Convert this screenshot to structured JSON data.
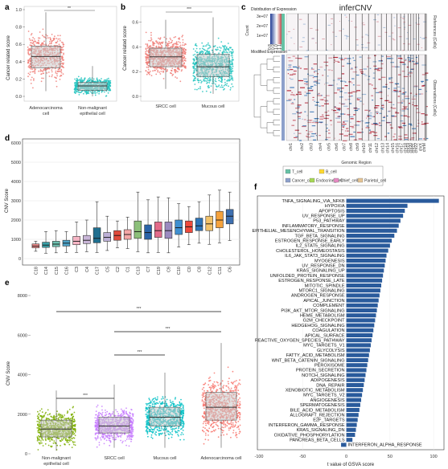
{
  "panels": {
    "a": {
      "letter": "a",
      "ylabel": "Cancer related score",
      "yticks": [
        "0.0",
        "0.2",
        "0.4",
        "0.6",
        "0.8",
        "1.0"
      ],
      "significance": "**",
      "groups": [
        {
          "label_lines": [
            "Adenocarcinoma",
            "cell"
          ],
          "color": "#f07e78",
          "box": {
            "min": 0.06,
            "q1": 0.33,
            "median": 0.46,
            "q3": 0.58,
            "max": 0.97
          }
        },
        {
          "label_lines": [
            "Non-malignant",
            "epithelial cell"
          ],
          "color": "#25c4c0",
          "box": {
            "min": 0.0,
            "q1": 0.07,
            "median": 0.12,
            "q3": 0.16,
            "max": 0.35
          }
        }
      ]
    },
    "b": {
      "letter": "b",
      "ylabel": "Cancer related score",
      "yticks": [
        "0.0",
        "0.2",
        "0.4",
        "0.6"
      ],
      "significance": "***",
      "groups": [
        {
          "label_lines": [
            "SRCC cell"
          ],
          "color": "#f07e78",
          "box": {
            "min": 0.06,
            "q1": 0.24,
            "median": 0.32,
            "q3": 0.39,
            "max": 0.62
          }
        },
        {
          "label_lines": [
            "Mucous cell"
          ],
          "color": "#25c4c0",
          "box": {
            "min": 0.02,
            "q1": 0.16,
            "median": 0.24,
            "q3": 0.34,
            "max": 0.64
          }
        }
      ]
    },
    "c": {
      "letter": "c",
      "title": "inferCNV",
      "legend_title": "Distribution of Expression",
      "count_label": "Count",
      "count_ticks": [
        "3e+07",
        "2e+07",
        "1e+07"
      ],
      "scale_ticks": [
        "0.8",
        "0.9",
        "1.0",
        "1.1",
        "1.2"
      ],
      "scale_label": "Modified Expression",
      "right_top_label": "References (Cells)",
      "right_bottom_label": "Observations (Cells)",
      "xlabel": "Genomic Region",
      "chromosomes": [
        "chr1",
        "chr2",
        "chr3",
        "chr4",
        "chr5",
        "chr6",
        "chr7",
        "chr8",
        "chr9",
        "chr10",
        "chr11",
        "chr12",
        "chr13",
        "chr14",
        "chr15",
        "chr16",
        "chr17",
        "chr18",
        "chr19",
        "chr20",
        "chr21",
        "chr22",
        "chrX",
        "chrM"
      ],
      "legend_items": [
        {
          "label": "T_cell",
          "color": "#66c2a5"
        },
        {
          "label": "B_cell",
          "color": "#ffd92f"
        },
        {
          "label": "Cancer_cell",
          "color": "#8da0cb"
        },
        {
          "label": "Endocrine_cell",
          "color": "#a6d854"
        },
        {
          "label": "Chief_cell",
          "color": "#e78ac3"
        },
        {
          "label": "Parietal_cell",
          "color": "#e5c494"
        }
      ]
    },
    "d": {
      "letter": "d",
      "ylabel": "CNV Score",
      "yticks": [
        "0",
        "1000",
        "2000",
        "3000",
        "4000",
        "5000",
        "6000"
      ]
    },
    "e": {
      "letter": "e",
      "ylabel": "CNV Score",
      "yticks": [
        "0",
        "2000",
        "4000",
        "6000",
        "8000"
      ],
      "significance": [
        "***",
        "***",
        "***",
        "***"
      ],
      "groups": [
        {
          "label_lines": [
            "Non-malignant",
            "epithelial cell"
          ],
          "color": "#7cae00",
          "box": {
            "min": 150,
            "q1": 850,
            "median": 1250,
            "q3": 1700,
            "max": 3200
          }
        },
        {
          "label_lines": [
            "SRCC cell"
          ],
          "color": "#c77cff",
          "box": {
            "min": 300,
            "q1": 1050,
            "median": 1400,
            "q3": 1850,
            "max": 3500
          }
        },
        {
          "label_lines": [
            "Mucous cell"
          ],
          "color": "#00bfc4",
          "box": {
            "min": 300,
            "q1": 1400,
            "median": 1850,
            "q3": 2350,
            "max": 4100
          }
        },
        {
          "label_lines": [
            "Adenocarcinoma cell"
          ],
          "color": "#f8766d",
          "box": {
            "min": 300,
            "q1": 1700,
            "median": 2350,
            "q3": 3100,
            "max": 5600
          }
        }
      ]
    },
    "f": {
      "letter": "f",
      "xlabel": "t value of GSVA score",
      "xticks": [
        "-100",
        "-50",
        "0",
        "50",
        "100"
      ]
    }
  },
  "chart_data": [
    {
      "type": "bar",
      "panel": "d",
      "ylabel": "CNV Score",
      "ylim": [
        0,
        6000
      ],
      "categories": [
        "C18",
        "C14",
        "C15",
        "C16",
        "C3",
        "C4",
        "C17",
        "C5",
        "C2",
        "C1",
        "C13",
        "C7",
        "C19",
        "C9",
        "C10",
        "C0",
        "C8",
        "C12",
        "C11",
        "C6"
      ],
      "box_colors": [
        "#ef8c8c",
        "#3aa1a8",
        "#6fc0b0",
        "#4da3c8",
        "#f6b5c4",
        "#c9b6d8",
        "#1f6f8f",
        "#bcb0d6",
        "#e04a3a",
        "#f4a6a6",
        "#8cc07a",
        "#2a63a8",
        "#e36b8a",
        "#9a8bc0",
        "#3f8fd0",
        "#ef4a3c",
        "#2d74b8",
        "#f2c26a",
        "#f5a23c",
        "#3d6fb0"
      ],
      "medians": [
        650,
        700,
        750,
        800,
        900,
        950,
        1050,
        1100,
        1200,
        1250,
        1400,
        1350,
        1450,
        1450,
        1600,
        1650,
        1700,
        1800,
        2000,
        2200
      ],
      "q1": [
        560,
        580,
        620,
        650,
        720,
        780,
        820,
        900,
        950,
        1000,
        1050,
        1000,
        1100,
        1050,
        1250,
        1350,
        1450,
        1450,
        1600,
        1800
      ],
      "q3": [
        760,
        850,
        900,
        950,
        1150,
        1200,
        1600,
        1350,
        1450,
        1500,
        1950,
        1750,
        1900,
        1900,
        2000,
        1950,
        2100,
        2200,
        2450,
        2550
      ],
      "whisker_low": [
        380,
        280,
        300,
        320,
        320,
        360,
        320,
        420,
        560,
        520,
        360,
        300,
        320,
        300,
        600,
        720,
        800,
        740,
        820,
        940
      ],
      "whisker_high": [
        900,
        1400,
        1450,
        1400,
        1900,
        2000,
        2950,
        2200,
        1950,
        2150,
        3450,
        3050,
        3200,
        3150,
        2850,
        2700,
        2950,
        3300,
        3550,
        3450
      ]
    },
    {
      "type": "bar",
      "panel": "f",
      "orientation": "horizontal",
      "xlabel": "t value of GSVA score",
      "xlim": [
        -100,
        110
      ],
      "categories": [
        "TNFA_SIGNALING_VIA_NFKB",
        "HYPOXIA",
        "APOPTOSIS",
        "UV_RESPONSE_UP",
        "P53_PATHWAY",
        "INFLAMMATORY_RESPONSE",
        "EPITHELIAL_MESENCHYMAL_TRANSITION",
        "TGF_BETA_SIGNALING",
        "ESTROGEN_RESPONSE_EARLY",
        "IL2_STAT5_SIGNALING",
        "CHOLESTEROL_HOMEOSTASIS",
        "IL6_JAK_STAT3_SIGNALING",
        "MYOGENESIS",
        "UV_RESPONSE_DN",
        "KRAS_SIGNALING_UP",
        "UNFOLDED_PROTEIN_RESPONSE",
        "ESTROGEN_RESPONSE_LATE",
        "MITOTIC_SPINDLE",
        "MTORC1_SIGNALING",
        "ANDROGEN_RESPONSE",
        "APICAL_JUNCTION",
        "COMPLEMENT",
        "PI3K_AKT_MTOR_SIGNALING",
        "HEME_METABOLISM",
        "G2M_CHECKPOINT",
        "HEDGEHOG_SIGNALING",
        "COAGULATION",
        "APICAL_SURFACE",
        "REACTIVE_OXYGEN_SPECIES_PATHWAY",
        "MYC_TARGETS_V1",
        "GLYCOLYSIS",
        "FATTY_ACID_METABOLISM",
        "WNT_BETA_CATENIN_SIGNALING",
        "PEROXISOME",
        "PROTEIN_SECRETION",
        "NOTCH_SIGNALING",
        "ADIPOGENESIS",
        "DNA_REPAIR",
        "XENOBIOTIC_METABOLISM",
        "MYC_TARGETS_V2",
        "ANGIOGENESIS",
        "SPERMATOGENESIS",
        "BILE_ACID_METABOLISM",
        "ALLOGRAFT_REJECTION",
        "E2F_TARGETS",
        "INTERFERON_GAMMA_RESPONSE",
        "KRAS_SIGNALING_DN",
        "OXIDATIVE_PHOSPHORYLATION",
        "PANCREAS_BETA_CELLS",
        "INTERFERON_ALPHA_RESPONSE"
      ],
      "values": [
        106,
        70,
        67,
        65,
        62,
        60,
        58,
        55,
        52,
        50,
        48,
        46,
        45,
        44,
        43,
        42,
        41,
        40,
        39,
        38,
        37,
        36,
        35,
        34,
        33,
        32,
        31,
        30,
        29,
        28,
        27,
        26,
        25,
        24,
        23,
        22,
        21,
        20,
        19,
        18,
        17,
        16,
        15,
        14,
        13,
        12,
        11,
        10,
        7,
        -6
      ],
      "bar_color": "#2a5b9c"
    }
  ]
}
